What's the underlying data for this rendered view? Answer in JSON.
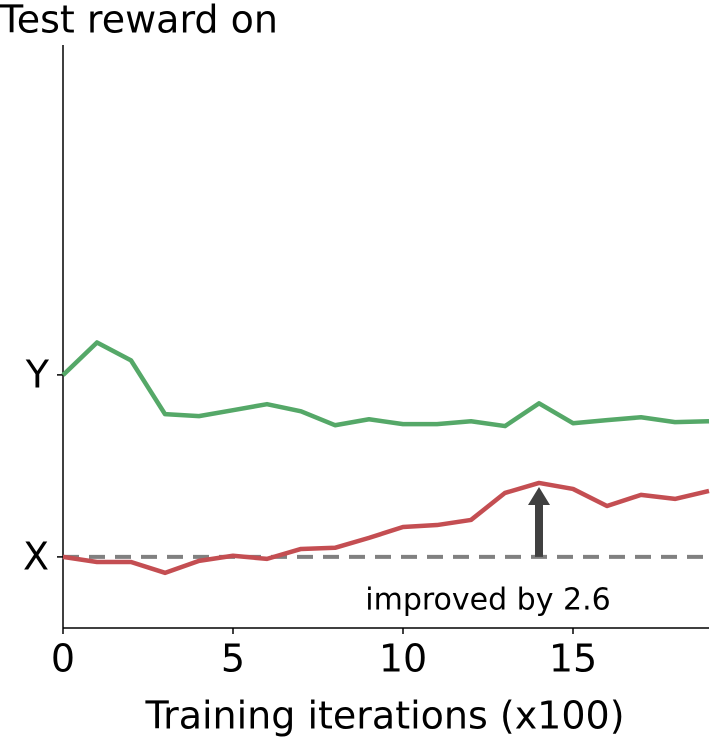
{
  "chart_data": {
    "type": "line",
    "title": "Test reward on",
    "x_label": "Training iterations (x100)",
    "annotation": "improved by 2.6",
    "x": [
      0,
      1,
      2,
      3,
      4,
      5,
      6,
      7,
      8,
      9,
      10,
      11,
      12,
      13,
      14,
      15,
      16,
      17,
      18,
      19
    ],
    "series": [
      {
        "color": "#55a868",
        "values": [
          6.39,
          7.54,
          6.91,
          5.02,
          4.95,
          5.16,
          5.37,
          5.12,
          4.63,
          4.84,
          4.67,
          4.67,
          4.77,
          4.6,
          5.4,
          4.7,
          4.81,
          4.91,
          4.74,
          4.77
        ]
      },
      {
        "color": "#c44e52",
        "values": [
          0,
          -0.18,
          -0.18,
          -0.56,
          -0.14,
          0.04,
          -0.07,
          0.28,
          0.32,
          0.67,
          1.05,
          1.12,
          1.3,
          2.25,
          2.6,
          2.39,
          1.79,
          2.18,
          2.04,
          2.32
        ]
      }
    ],
    "xlim": [
      0,
      19
    ],
    "xticks": [
      0,
      5,
      10,
      15
    ],
    "ylim": [
      -2.5,
      18
    ],
    "yticks": [
      {
        "value": 0,
        "label": "X"
      },
      {
        "value": 6.4,
        "label": "Y"
      }
    ]
  }
}
